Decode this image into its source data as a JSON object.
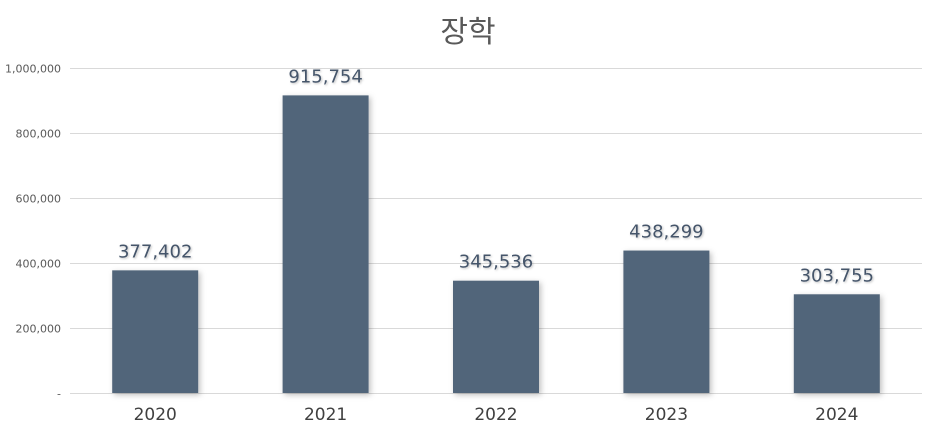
{
  "chart_data": {
    "type": "bar",
    "title": "장학",
    "categories": [
      "2020",
      "2021",
      "2022",
      "2023",
      "2024"
    ],
    "values": [
      377402,
      915754,
      345536,
      438299,
      303755
    ],
    "value_labels": [
      "377,402",
      "915,754",
      "345,536",
      "438,299",
      "303,755"
    ],
    "ylim": [
      0,
      1000000
    ],
    "yticks": [
      0,
      200000,
      400000,
      600000,
      800000,
      1000000
    ],
    "ytick_labels": [
      "-",
      "200,000",
      "400,000",
      "600,000",
      "800,000",
      "1,000,000"
    ],
    "xlabel": "",
    "ylabel": "",
    "grid": true,
    "legend": "none",
    "bar_color": "#51657A",
    "label_color": "#44546A"
  }
}
